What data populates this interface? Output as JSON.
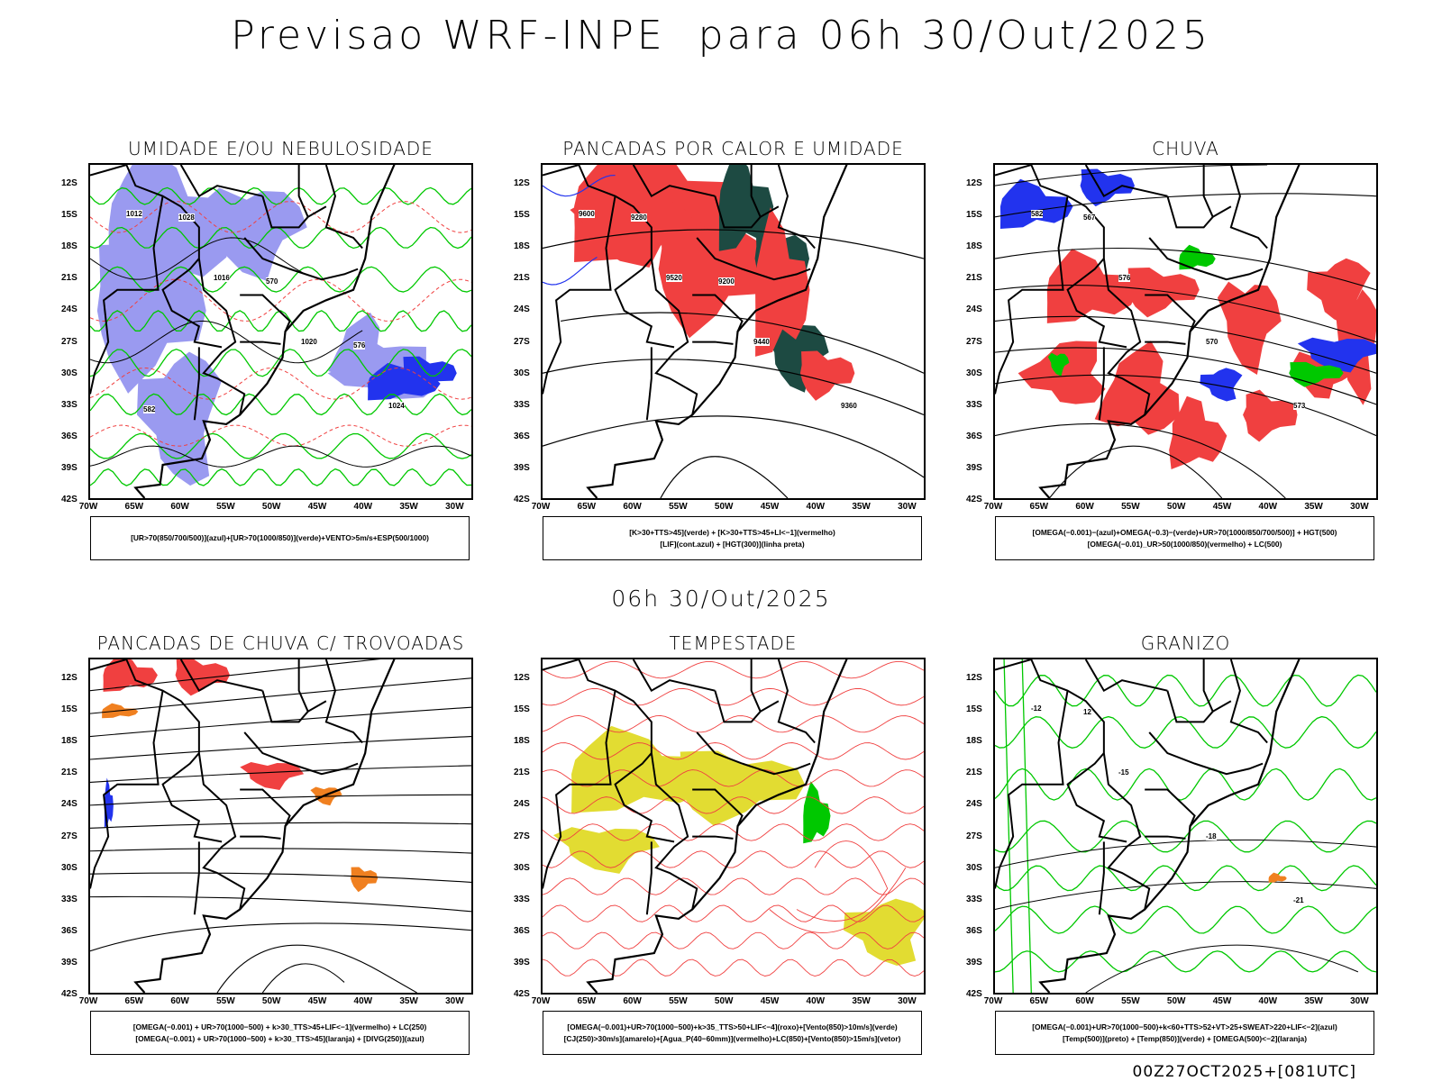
{
  "header": {
    "title": "Previsao WRF-INPE  para 06h 30/Out/2025"
  },
  "mid_label": "06h 30/Out/2025",
  "footer": "00Z27OCT2025+[081UTC]",
  "lat_ticks": [
    "12S",
    "15S",
    "18S",
    "21S",
    "24S",
    "27S",
    "30S",
    "33S",
    "36S",
    "39S",
    "42S"
  ],
  "lon_ticks": [
    "70W",
    "65W",
    "60W",
    "55W",
    "50W",
    "45W",
    "40W",
    "35W",
    "30W"
  ],
  "colors": {
    "red": "#f04040",
    "green": "#00c800",
    "blue": "#2233ee",
    "light_blue": "#9a9af0",
    "dark_green": "#1d4a42",
    "yellow": "#e2dc32",
    "orange": "#f08020",
    "purple": "#9933cc"
  },
  "panels": [
    {
      "title": "UMIDADE E/OU NEBULOSIDADE",
      "legend": [
        "[UR>70(850/700/500)](azul)+[UR>70(1000/850)](verde)+VENTO>5m/s+ESP(500/1000)"
      ],
      "labels": [
        "1012",
        "1016",
        "1020",
        "1024",
        "1028",
        "570",
        "576",
        "582"
      ]
    },
    {
      "title": "PANCADAS POR CALOR E UMIDADE",
      "legend": [
        "[K>30+TTS>45](verde)  +  [K>30+TTS>45+LI<−1](vermelho)",
        "[LIF](cont.azul)  +  [HGT(300)](linha preta)"
      ],
      "labels": [
        "9600",
        "9520",
        "9440",
        "9360",
        "9280",
        "9200"
      ]
    },
    {
      "title": "CHUVA",
      "legend": [
        "[OMEGA(−0.001)−(azul)+OMEGA(−0.3)−(verde)+UR>70(1000/850/700/500)]  +  HGT(500)",
        "[OMEGA(−0.01)_UR>50(1000/850)(vermelho)  +  LC(500)"
      ],
      "labels": [
        "582",
        "576",
        "570",
        "573",
        "567"
      ]
    },
    {
      "title": "PANCADAS DE CHUVA C/ TROVOADAS",
      "legend": [
        "[OMEGA(−0.001)  +  UR>70(1000−500)  +  k>30_TTS>45+LIF<−1](vermelho)  +  LC(250)",
        "[OMEGA(−0.001)  +  UR>70(1000−500)  +  k>30_TTS>45](laranja)  +  [DIVG(250)](azul)"
      ],
      "labels": []
    },
    {
      "title": "TEMPESTADE",
      "legend": [
        "[OMEGA(−0.001)+UR>70(1000−500)+k>35_TTS>50+LIF<−4](roxo)+[Vento(850)>10m/s](verde)",
        "[CJ(250)>30m/s](amarelo)+[Agua_P(40−60mm)](vermelho)+LC(850)+[Vento(850)>15m/s](vetor)"
      ],
      "labels": []
    },
    {
      "title": "GRANIZO",
      "legend": [
        "[OMEGA(−0.001)+UR>70(1000−500)+k<60+TTS>52+VT>25+SWEAT>220+LIF<−2](azul)",
        "[Temp(500)](preto)  +  [Temp(850)](verde)  +  [OMEGA(500)<−2](laranja)"
      ],
      "labels": [
        "-12",
        "-15",
        "-18",
        "-21",
        "12"
      ]
    }
  ]
}
